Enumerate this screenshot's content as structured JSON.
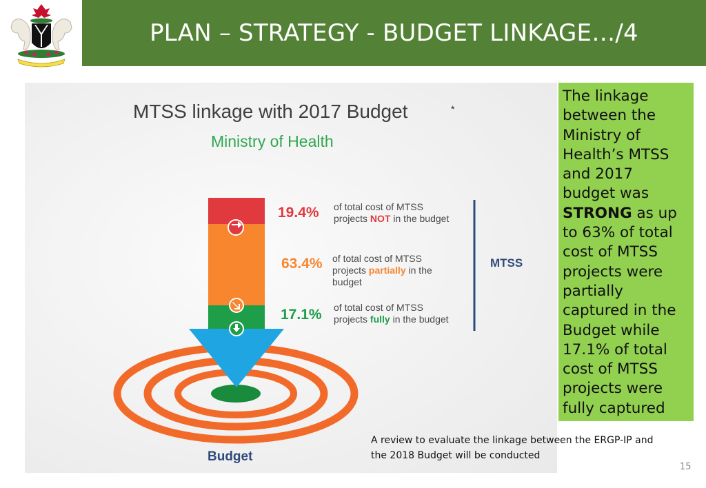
{
  "header": {
    "title": "PLAN – STRATEGY - BUDGET LINKAGE…/4",
    "bar_color": "#538135",
    "logo": "nigeria-coat-of-arms"
  },
  "graphic": {
    "title": "MTSS linkage with 2017 Budget",
    "title_mark": "*",
    "subtitle": "Ministry of Health",
    "segments": [
      {
        "percent": "19.4%",
        "text_before": "of total cost of MTSS projects ",
        "highlight": "NOT",
        "text_after": " in the budget",
        "color": "#e03a3e"
      },
      {
        "percent": "63.4%",
        "text_before": "of total cost of MTSS projects ",
        "highlight": "partially",
        "text_after": " in the budget",
        "color": "#f7862f"
      },
      {
        "percent": "17.1%",
        "text_before": "of total cost of MTSS projects ",
        "highlight": "fully",
        "text_after": " in the budget",
        "color": "#1f9e4a"
      }
    ],
    "bracket_label": "MTSS",
    "target_label": "Budget",
    "arrow_color": "#1fa6e2",
    "ring_color": "#f26a2a"
  },
  "summary": {
    "text_before": "The linkage between the Ministry of Health’s MTSS and 2017 budget was ",
    "strong": "STRONG",
    "text_after": " as up to 63% of total cost of MTSS projects were partially captured in the Budget while 17.1% of total cost of MTSS projects were fully captured",
    "bg_color": "#92d050"
  },
  "note": "A review to evaluate the linkage between the ERGP-IP and the 2018 Budget will be conducted",
  "page_number": "15"
}
